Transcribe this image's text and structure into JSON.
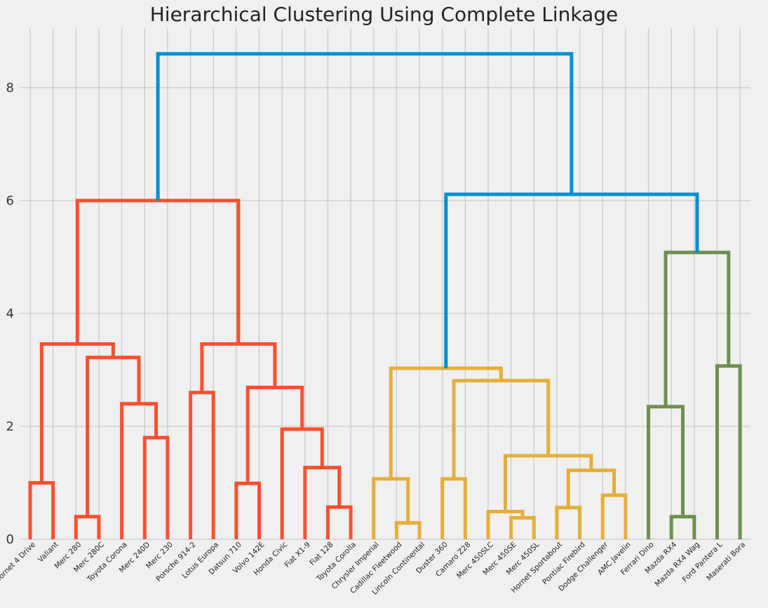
{
  "chart_data": {
    "type": "dendrogram",
    "title": "Hierarchical Clustering Using Complete Linkage",
    "xlabel": "",
    "ylabel": "",
    "ylim": [
      0,
      9
    ],
    "yticks": [
      0,
      2,
      4,
      6,
      8
    ],
    "grid": true,
    "colors": {
      "background": "#f0f0f0",
      "grid": "#cbcbcb",
      "above_threshold": "#008fd5",
      "cluster_1": "#fc4f30",
      "cluster_2": "#e5ae38",
      "cluster_3": "#6d904f"
    },
    "leaves": [
      "Hornet 4 Drive",
      "Valiant",
      "Merc 280",
      "Merc 280C",
      "Toyota Corona",
      "Merc 240D",
      "Merc 230",
      "Porsche 914-2",
      "Lotus Europa",
      "Datsun 710",
      "Volvo 142E",
      "Honda Civic",
      "Fiat X1-9",
      "Fiat 128",
      "Toyota Corolla",
      "Chrysler Imperial",
      "Cadillac Fleetwood",
      "Lincoln Continental",
      "Duster 360",
      "Camaro Z28",
      "Merc 450SLC",
      "Merc 450SE",
      "Merc 450SL",
      "Hornet Sportabout",
      "Pontiac Firebird",
      "Dodge Challenger",
      "AMC Javelin",
      "Ferrari Dino",
      "Mazda RX4",
      "Mazda RX4 Wag",
      "Ford Pantera L",
      "Maserati Bora"
    ],
    "merges": [
      {
        "id": "m1",
        "left": 0,
        "right": 1,
        "height": 1.0,
        "color": "cluster_1"
      },
      {
        "id": "m2",
        "left": 2,
        "right": 3,
        "height": 0.4,
        "color": "cluster_1"
      },
      {
        "id": "m3",
        "left": 5,
        "right": 6,
        "height": 1.8,
        "color": "cluster_1"
      },
      {
        "id": "m4",
        "left": 4,
        "right": "m3",
        "height": 2.4,
        "color": "cluster_1"
      },
      {
        "id": "m5",
        "left": "m2",
        "right": "m4",
        "height": 3.22,
        "color": "cluster_1"
      },
      {
        "id": "m6",
        "left": "m1",
        "right": "m5",
        "height": 3.46,
        "color": "cluster_1"
      },
      {
        "id": "m7",
        "left": 7,
        "right": 8,
        "height": 2.6,
        "color": "cluster_1"
      },
      {
        "id": "m8",
        "left": 9,
        "right": 10,
        "height": 0.99,
        "color": "cluster_1"
      },
      {
        "id": "m9",
        "left": 13,
        "right": 14,
        "height": 0.57,
        "color": "cluster_1"
      },
      {
        "id": "m10",
        "left": 12,
        "right": "m9",
        "height": 1.27,
        "color": "cluster_1"
      },
      {
        "id": "m11",
        "left": 11,
        "right": "m10",
        "height": 1.95,
        "color": "cluster_1"
      },
      {
        "id": "m12",
        "left": "m8",
        "right": "m11",
        "height": 2.69,
        "color": "cluster_1"
      },
      {
        "id": "m13",
        "left": "m7",
        "right": "m12",
        "height": 3.46,
        "color": "cluster_1"
      },
      {
        "id": "m14",
        "left": "m6",
        "right": "m13",
        "height": 6.0,
        "color": "cluster_1"
      },
      {
        "id": "m15",
        "left": 16,
        "right": 17,
        "height": 0.29,
        "color": "cluster_2"
      },
      {
        "id": "m16",
        "left": 15,
        "right": "m15",
        "height": 1.07,
        "color": "cluster_2"
      },
      {
        "id": "m17",
        "left": 18,
        "right": 19,
        "height": 1.07,
        "color": "cluster_2"
      },
      {
        "id": "m18",
        "left": 21,
        "right": 22,
        "height": 0.38,
        "color": "cluster_2"
      },
      {
        "id": "m19",
        "left": 20,
        "right": "m18",
        "height": 0.49,
        "color": "cluster_2"
      },
      {
        "id": "m20",
        "left": 23,
        "right": 24,
        "height": 0.56,
        "color": "cluster_2"
      },
      {
        "id": "m21",
        "left": 25,
        "right": 26,
        "height": 0.78,
        "color": "cluster_2"
      },
      {
        "id": "m22",
        "left": "m20",
        "right": "m21",
        "height": 1.22,
        "color": "cluster_2"
      },
      {
        "id": "m23",
        "left": "m19",
        "right": "m22",
        "height": 1.48,
        "color": "cluster_2"
      },
      {
        "id": "m24",
        "left": "m17",
        "right": "m23",
        "height": 2.81,
        "color": "cluster_2"
      },
      {
        "id": "m25",
        "left": "m16",
        "right": "m24",
        "height": 3.03,
        "color": "cluster_2"
      },
      {
        "id": "m26",
        "left": 28,
        "right": 29,
        "height": 0.4,
        "color": "cluster_3"
      },
      {
        "id": "m27",
        "left": 27,
        "right": "m26",
        "height": 2.35,
        "color": "cluster_3"
      },
      {
        "id": "m28",
        "left": 30,
        "right": 31,
        "height": 3.07,
        "color": "cluster_3"
      },
      {
        "id": "m29",
        "left": "m27",
        "right": "m28",
        "height": 5.08,
        "color": "cluster_3"
      },
      {
        "id": "m30",
        "left": "m25",
        "right": "m29",
        "height": 6.11,
        "color": "above_threshold"
      },
      {
        "id": "m31",
        "left": "m14",
        "right": "m30",
        "height": 8.6,
        "color": "above_threshold"
      }
    ]
  }
}
